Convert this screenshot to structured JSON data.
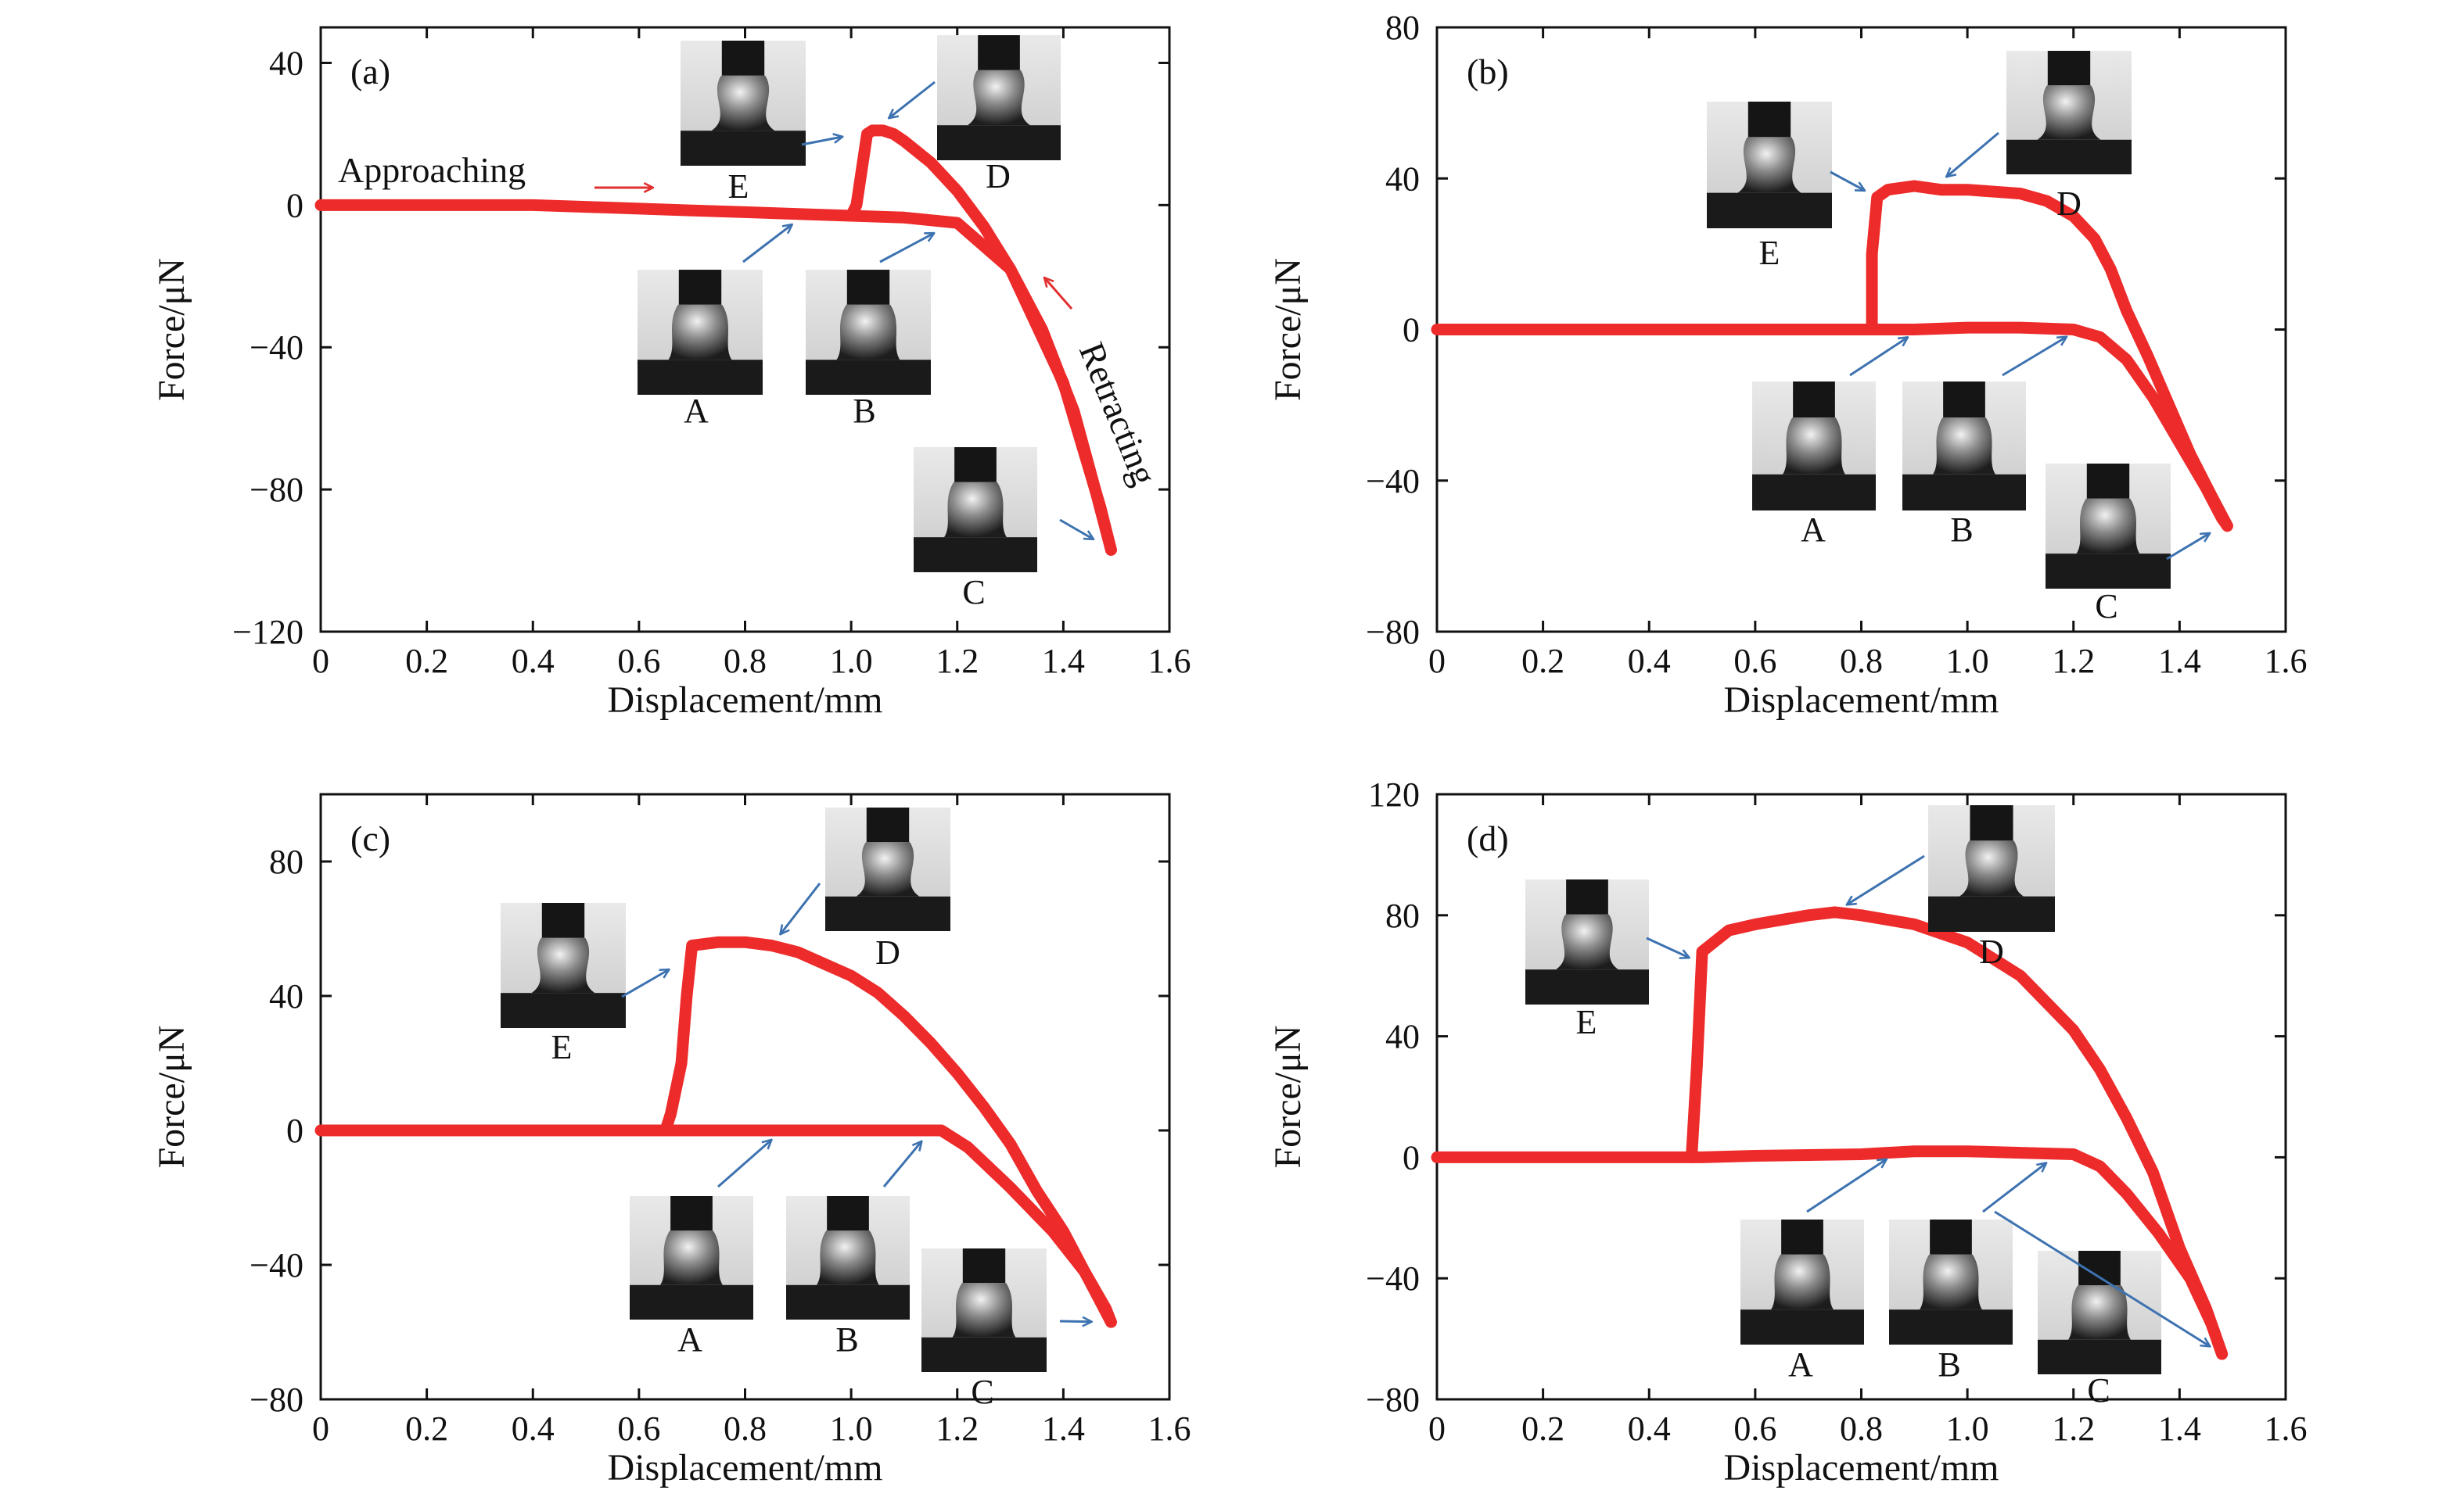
{
  "figure": {
    "colors": {
      "curve": "#ee2b2b",
      "pointer_arrow": "#3d72b0",
      "annotation_arrow": "#e23030",
      "axis": "#111111",
      "inset_background": "#dcdcdc",
      "inset_stage": "#1a1a1a",
      "inset_probe": "#151515"
    }
  },
  "chart_data": [
    {
      "id": "a",
      "type": "line",
      "panel_label": "(a)",
      "xlabel": "Displacement/mm",
      "ylabel": "Force/μN",
      "xlim": [
        0,
        1.6
      ],
      "ylim": [
        -120,
        50
      ],
      "xticks": [
        0,
        0.2,
        0.4,
        0.6,
        0.8,
        1.0,
        1.2,
        1.4,
        1.6
      ],
      "xtick_labels": [
        "0",
        "0.2",
        "0.4",
        "0.6",
        "0.8",
        "1.0",
        "1.2",
        "1.4",
        "1.6"
      ],
      "yticks": [
        -120,
        -80,
        -40,
        0,
        40
      ],
      "ytick_labels": [
        "−120",
        "−80",
        "−40",
        "0",
        "40"
      ],
      "grid": false,
      "series": [
        {
          "segment": "approaching",
          "x": [
            0,
            0.2,
            0.4,
            0.5,
            0.6,
            0.7,
            0.8,
            0.9,
            1.0,
            1.1,
            1.2,
            1.3,
            1.4,
            1.47,
            1.49
          ],
          "y": [
            0,
            0,
            0,
            -0.5,
            -1,
            -1.5,
            -2,
            -2.5,
            -3,
            -3.5,
            -5,
            -18,
            -50,
            -85,
            -97
          ]
        },
        {
          "segment": "retracting",
          "x": [
            1.49,
            1.46,
            1.42,
            1.36,
            1.3,
            1.25,
            1.2,
            1.15,
            1.1,
            1.08,
            1.06,
            1.04,
            1.03,
            1.02,
            1.01,
            1.0
          ],
          "y": [
            -97,
            -80,
            -58,
            -35,
            -18,
            -6,
            4,
            12,
            18,
            20,
            21,
            21,
            20,
            10,
            0,
            -3
          ]
        }
      ],
      "markers": [
        {
          "label": "A",
          "x": 0.91,
          "y": -3
        },
        {
          "label": "B",
          "x": 1.18,
          "y": -6
        },
        {
          "label": "C",
          "x": 1.48,
          "y": -96
        },
        {
          "label": "D",
          "x": 1.05,
          "y": 22
        },
        {
          "label": "E",
          "x": 1.01,
          "y": 20
        }
      ],
      "annotations": [
        {
          "text": "Approaching",
          "kind": "segment-label"
        },
        {
          "text": "Retracting",
          "kind": "segment-label"
        }
      ]
    },
    {
      "id": "b",
      "type": "line",
      "panel_label": "(b)",
      "xlabel": "Displacement/mm",
      "ylabel": "Force/μN",
      "xlim": [
        0,
        1.6
      ],
      "ylim": [
        -80,
        80
      ],
      "xticks": [
        0,
        0.2,
        0.4,
        0.6,
        0.8,
        1.0,
        1.2,
        1.4,
        1.6
      ],
      "xtick_labels": [
        "0",
        "0.2",
        "0.4",
        "0.6",
        "0.8",
        "1.0",
        "1.2",
        "1.4",
        "1.6"
      ],
      "yticks": [
        -80,
        -40,
        0,
        40,
        80
      ],
      "ytick_labels": [
        "−80",
        "−40",
        "0",
        "40",
        "80"
      ],
      "grid": false,
      "series": [
        {
          "segment": "approaching",
          "x": [
            0,
            0.2,
            0.4,
            0.6,
            0.8,
            0.9,
            1.0,
            1.1,
            1.2,
            1.25,
            1.3,
            1.35,
            1.4,
            1.45,
            1.48,
            1.49
          ],
          "y": [
            0,
            0,
            0,
            0,
            0,
            0,
            0.5,
            0.5,
            0,
            -2,
            -8,
            -18,
            -30,
            -42,
            -50,
            -52
          ]
        },
        {
          "segment": "retracting",
          "x": [
            1.49,
            1.46,
            1.42,
            1.38,
            1.34,
            1.3,
            1.27,
            1.24,
            1.2,
            1.15,
            1.1,
            1.0,
            0.95,
            0.9,
            0.85,
            0.83,
            0.82,
            0.82
          ],
          "y": [
            -52,
            -44,
            -33,
            -20,
            -7,
            5,
            16,
            24,
            30,
            34,
            36,
            37,
            37,
            38,
            37,
            35,
            20,
            0
          ]
        }
      ],
      "markers": [
        {
          "label": "A",
          "x": 0.91,
          "y": 0
        },
        {
          "label": "B",
          "x": 1.21,
          "y": 0
        },
        {
          "label": "C",
          "x": 1.48,
          "y": -52
        },
        {
          "label": "D",
          "x": 0.94,
          "y": 38
        },
        {
          "label": "E",
          "x": 0.83,
          "y": 35
        }
      ]
    },
    {
      "id": "c",
      "type": "line",
      "panel_label": "(c)",
      "xlabel": "Displacement/mm",
      "ylabel": "Force/μN",
      "xlim": [
        0,
        1.6
      ],
      "ylim": [
        -80,
        100
      ],
      "xticks": [
        0,
        0.2,
        0.4,
        0.6,
        0.8,
        1.0,
        1.2,
        1.4,
        1.6
      ],
      "xtick_labels": [
        "0",
        "0.2",
        "0.4",
        "0.6",
        "0.8",
        "1.0",
        "1.2",
        "1.4",
        "1.6"
      ],
      "yticks": [
        -80,
        -40,
        0,
        40,
        80
      ],
      "ytick_labels": [
        "−80",
        "−40",
        "0",
        "40",
        "80"
      ],
      "grid": false,
      "series": [
        {
          "segment": "approaching",
          "x": [
            0,
            0.2,
            0.4,
            0.6,
            0.8,
            1.0,
            1.1,
            1.17,
            1.22,
            1.3,
            1.38,
            1.44,
            1.48,
            1.49
          ],
          "y": [
            0,
            0,
            0,
            0,
            0,
            0,
            0,
            0,
            -5,
            -17,
            -30,
            -42,
            -53,
            -57
          ]
        },
        {
          "segment": "retracting",
          "x": [
            1.49,
            1.45,
            1.4,
            1.35,
            1.3,
            1.25,
            1.2,
            1.15,
            1.1,
            1.05,
            1.0,
            0.9,
            0.85,
            0.8,
            0.75,
            0.7,
            0.69,
            0.68,
            0.66,
            0.65
          ],
          "y": [
            -57,
            -45,
            -30,
            -18,
            -4,
            7,
            17,
            26,
            34,
            41,
            46,
            53,
            55,
            56,
            56,
            55,
            40,
            20,
            5,
            0
          ]
        }
      ],
      "markers": [
        {
          "label": "A",
          "x": 0.87,
          "y": 0
        },
        {
          "label": "B",
          "x": 1.15,
          "y": 0
        },
        {
          "label": "C",
          "x": 1.48,
          "y": -57
        },
        {
          "label": "D",
          "x": 0.85,
          "y": 55
        },
        {
          "label": "E",
          "x": 0.68,
          "y": 50
        }
      ]
    },
    {
      "id": "d",
      "type": "line",
      "panel_label": "(d)",
      "xlabel": "Displacement/mm",
      "ylabel": "Force/μN",
      "xlim": [
        0,
        1.6
      ],
      "ylim": [
        -80,
        120
      ],
      "xticks": [
        0,
        0.2,
        0.4,
        0.6,
        0.8,
        1.0,
        1.2,
        1.4,
        1.6
      ],
      "xtick_labels": [
        "0",
        "0.2",
        "0.4",
        "0.6",
        "0.8",
        "1.0",
        "1.2",
        "1.4",
        "1.6"
      ],
      "yticks": [
        -80,
        -40,
        0,
        40,
        80,
        120
      ],
      "ytick_labels": [
        "−80",
        "−40",
        "0",
        "40",
        "80",
        "120"
      ],
      "grid": false,
      "series": [
        {
          "segment": "approaching",
          "x": [
            0,
            0.2,
            0.4,
            0.5,
            0.6,
            0.8,
            0.9,
            1.0,
            1.1,
            1.2,
            1.25,
            1.3,
            1.36,
            1.42,
            1.46,
            1.48
          ],
          "y": [
            0,
            0,
            0,
            0,
            0.5,
            1,
            2,
            2,
            1.5,
            1,
            -3,
            -12,
            -25,
            -40,
            -55,
            -65
          ]
        },
        {
          "segment": "retracting",
          "x": [
            1.48,
            1.45,
            1.4,
            1.35,
            1.3,
            1.25,
            1.2,
            1.1,
            1.0,
            0.9,
            0.8,
            0.75,
            0.7,
            0.6,
            0.55,
            0.5,
            0.49,
            0.48
          ],
          "y": [
            -65,
            -50,
            -30,
            -5,
            13,
            29,
            42,
            60,
            71,
            77,
            80,
            81,
            80,
            77,
            75,
            68,
            30,
            0
          ]
        }
      ],
      "markers": [
        {
          "label": "A",
          "x": 0.87,
          "y": 2
        },
        {
          "label": "B",
          "x": 1.17,
          "y": 1
        },
        {
          "label": "C",
          "x": 1.48,
          "y": -65
        },
        {
          "label": "D",
          "x": 0.75,
          "y": 81
        },
        {
          "label": "E",
          "x": 0.5,
          "y": 64
        }
      ]
    }
  ]
}
